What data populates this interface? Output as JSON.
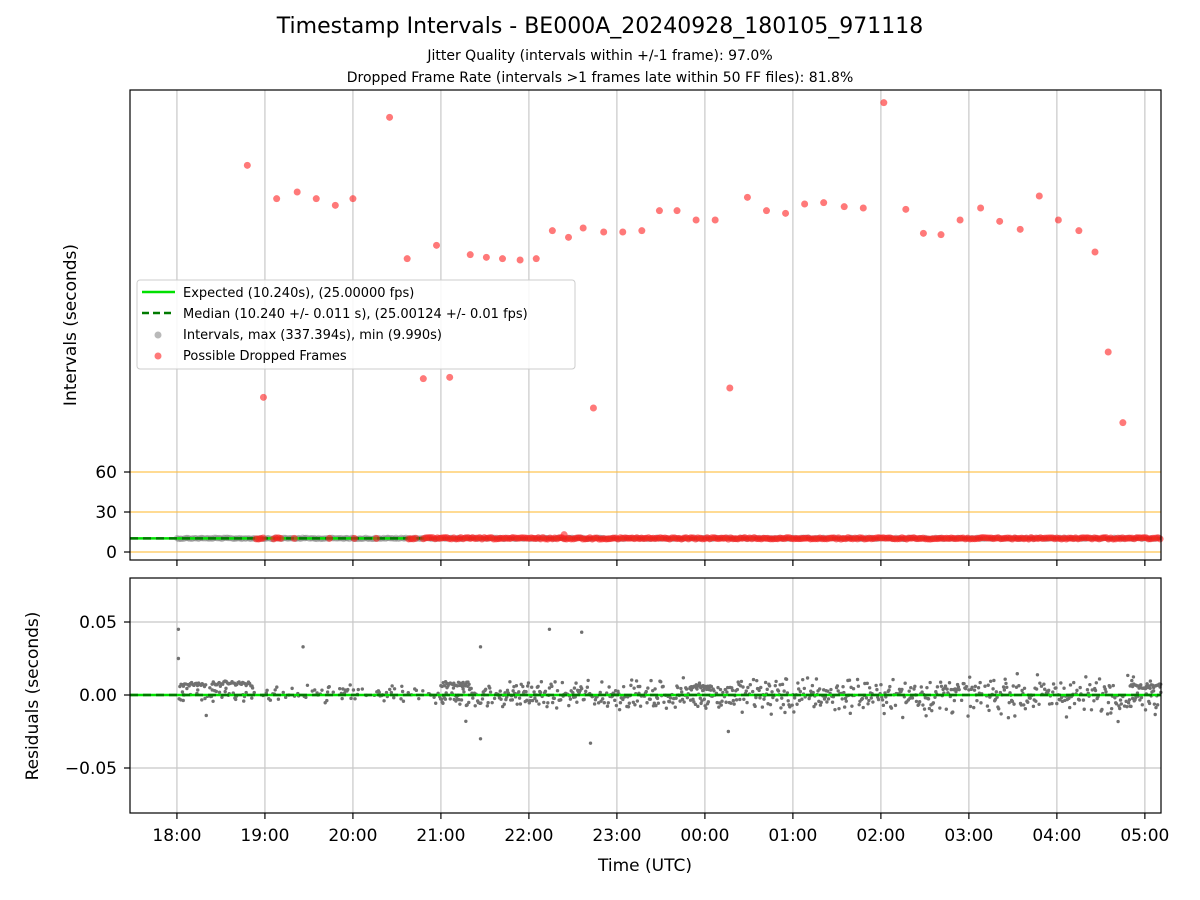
{
  "chart_data": [
    {
      "type": "scatter",
      "title": "Timestamp Intervals - BE000A_20240928_180105_971118",
      "subtitles": [
        "Jitter Quality (intervals within +/-1 frame): 97.0%",
        "Dropped Frame Rate (intervals >1 frames late within 50 FF files): 81.8%"
      ],
      "ylabel": "Intervals (seconds)",
      "yticks": [
        0,
        30,
        60
      ],
      "reference_lines": [
        0,
        30,
        60
      ],
      "x_start": "2024-09-28 17:28",
      "x_end": "2024-09-29 05:11",
      "xticks": [
        "18:00",
        "19:00",
        "20:00",
        "21:00",
        "22:00",
        "23:00",
        "00:00",
        "01:00",
        "02:00",
        "03:00",
        "04:00",
        "05:00"
      ],
      "grid": "x",
      "legend_position": "center-left",
      "series": [
        {
          "name": "Expected (10.240s), (25.00000 fps)",
          "style": "solid-line",
          "color": "#00e000",
          "value": 10.24
        },
        {
          "name": "Median (10.240 +/- 0.011 s), (25.00124 +/- 0.01 fps)",
          "style": "dashed-line",
          "color": "#007a00",
          "value": 10.24
        },
        {
          "name": "Intervals, max (337.394s), min (9.990s)",
          "style": "marker",
          "color": "#808080"
        },
        {
          "name": "Possible Dropped Frames",
          "style": "marker",
          "color": "#ff2020",
          "points": [
            [
              "2024-09-28 18:48",
              290
            ],
            [
              "2024-09-28 18:59",
              116
            ],
            [
              "2024-09-28 19:08",
              265
            ],
            [
              "2024-09-28 19:22",
              270
            ],
            [
              "2024-09-28 19:35",
              265
            ],
            [
              "2024-09-28 19:48",
              260
            ],
            [
              "2024-09-28 20:00",
              265
            ],
            [
              "2024-09-28 20:25",
              326
            ],
            [
              "2024-09-28 20:37",
              220
            ],
            [
              "2024-09-28 20:48",
              130
            ],
            [
              "2024-09-28 20:57",
              230
            ],
            [
              "2024-09-28 21:06",
              131
            ],
            [
              "2024-09-28 21:20",
              223
            ],
            [
              "2024-09-28 21:31",
              221
            ],
            [
              "2024-09-28 21:42",
              220
            ],
            [
              "2024-09-28 21:54",
              219
            ],
            [
              "2024-09-28 22:05",
              220
            ],
            [
              "2024-09-28 22:16",
              241
            ],
            [
              "2024-09-28 22:27",
              236
            ],
            [
              "2024-09-28 22:37",
              243
            ],
            [
              "2024-09-28 22:44",
              108
            ],
            [
              "2024-09-28 22:51",
              240
            ],
            [
              "2024-09-28 23:04",
              240
            ],
            [
              "2024-09-28 23:17",
              241
            ],
            [
              "2024-09-28 23:29",
              256
            ],
            [
              "2024-09-28 23:41",
              256
            ],
            [
              "2024-09-28 23:54",
              249
            ],
            [
              "2024-09-29 00:07",
              249
            ],
            [
              "2024-09-29 00:17",
              123
            ],
            [
              "2024-09-29 00:29",
              266
            ],
            [
              "2024-09-29 00:42",
              256
            ],
            [
              "2024-09-29 00:55",
              254
            ],
            [
              "2024-09-29 01:08",
              261
            ],
            [
              "2024-09-29 01:21",
              262
            ],
            [
              "2024-09-29 01:35",
              259
            ],
            [
              "2024-09-29 01:48",
              258
            ],
            [
              "2024-09-29 02:02",
              337
            ],
            [
              "2024-09-29 02:17",
              257
            ],
            [
              "2024-09-29 02:29",
              239
            ],
            [
              "2024-09-29 02:41",
              238
            ],
            [
              "2024-09-29 02:54",
              249
            ],
            [
              "2024-09-29 03:08",
              258
            ],
            [
              "2024-09-29 03:21",
              248
            ],
            [
              "2024-09-29 03:35",
              242
            ],
            [
              "2024-09-29 03:48",
              267
            ],
            [
              "2024-09-29 04:01",
              249
            ],
            [
              "2024-09-29 04:15",
              241
            ],
            [
              "2024-09-29 04:26",
              225
            ],
            [
              "2024-09-29 04:35",
              150
            ],
            [
              "2024-09-29 04:45",
              97
            ]
          ]
        }
      ]
    },
    {
      "type": "scatter",
      "ylabel": "Residuals (seconds)",
      "xlabel": "Time (UTC)",
      "ylim": [
        -0.08,
        0.08
      ],
      "yticks": [
        0.05,
        0.0,
        -0.05
      ],
      "ytick_labels": [
        "0.05",
        "0.00",
        "−0.05"
      ],
      "grid": "both",
      "series": [
        {
          "name": "Intervals",
          "color": "#707070",
          "spread": 0.006,
          "outliers": [
            [
              "2024-09-28 18:01",
              0.045
            ],
            [
              "2024-09-28 18:01",
              0.025
            ],
            [
              "2024-09-28 19:26",
              0.033
            ],
            [
              "2024-09-28 21:27",
              0.033
            ],
            [
              "2024-09-28 21:27",
              -0.03
            ],
            [
              "2024-09-28 22:14",
              0.045
            ],
            [
              "2024-09-28 22:36",
              0.043
            ],
            [
              "2024-09-28 22:42",
              -0.033
            ],
            [
              "2024-09-29 00:16",
              -0.025
            ],
            [
              "2024-09-28 21:17",
              -0.018
            ],
            [
              "2024-09-28 18:20",
              -0.014
            ]
          ]
        },
        {
          "name": "Expected",
          "style": "solid-line",
          "color": "#00e000",
          "value": 0
        },
        {
          "name": "Median",
          "style": "dashed-line",
          "color": "#007a00",
          "value": 0
        }
      ]
    }
  ]
}
